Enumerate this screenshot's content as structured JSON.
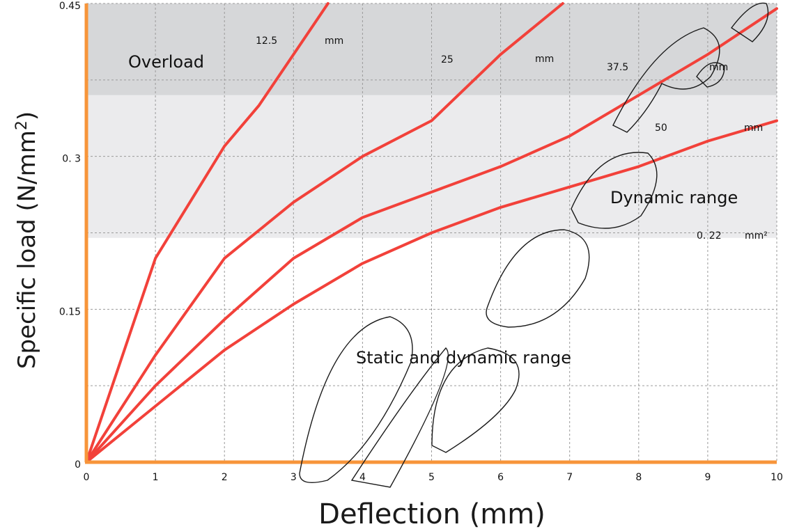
{
  "chart_data": {
    "type": "line",
    "xlabel": "Deflection (mm)",
    "ylabel_main": "Specific load (N/mm",
    "ylabel_sup": "2",
    "ylabel_close": ")",
    "xlim": [
      0,
      10
    ],
    "ylim": [
      0,
      0.45
    ],
    "x_ticks": [
      "0",
      "1",
      "2",
      "3",
      "4",
      "5",
      "6",
      "7",
      "8",
      "9",
      "10"
    ],
    "y_ticks": [
      {
        "value": 0,
        "label": "0"
      },
      {
        "value": 0.15,
        "label": "0.15"
      },
      {
        "value": 0.3,
        "label": "0. 3"
      },
      {
        "value": 0.45,
        "label": "0.45"
      }
    ],
    "grid": true,
    "regions": [
      {
        "label": "Overload",
        "y_from": 0.36,
        "y_to": 0.45,
        "color": "#d6d7d9"
      },
      {
        "label": "Dynamic range",
        "y_from": 0.22,
        "y_to": 0.36,
        "color": "#ebebed"
      },
      {
        "label": "Static and dynamic range",
        "y_from": 0,
        "y_to": 0.22,
        "color": "#ffffff"
      }
    ],
    "threshold_label": {
      "value": "0. 22",
      "unit": "mm²"
    },
    "series": [
      {
        "name": "12.5",
        "unit": "mm",
        "x": [
          0,
          1,
          2,
          2.5,
          3,
          3.5
        ],
        "y": [
          0,
          0.2,
          0.31,
          0.35,
          0.4,
          0.45
        ]
      },
      {
        "name": "25",
        "unit": "mm",
        "x": [
          0,
          1,
          2,
          3,
          4,
          5,
          6,
          6.9
        ],
        "y": [
          0,
          0.105,
          0.2,
          0.255,
          0.3,
          0.335,
          0.4,
          0.45
        ]
      },
      {
        "name": "37.5",
        "unit": "mm",
        "x": [
          0,
          1,
          2,
          3,
          4,
          5,
          6,
          7,
          8,
          9,
          10
        ],
        "y": [
          0,
          0.075,
          0.14,
          0.2,
          0.24,
          0.265,
          0.29,
          0.32,
          0.36,
          0.4,
          0.445
        ]
      },
      {
        "name": "50",
        "unit": "mm",
        "x": [
          0,
          1,
          2,
          3,
          4,
          5,
          6,
          7,
          8,
          9,
          10
        ],
        "y": [
          0,
          0.055,
          0.11,
          0.155,
          0.195,
          0.225,
          0.25,
          0.27,
          0.29,
          0.315,
          0.335
        ]
      }
    ],
    "colors": {
      "series": "#f2413a",
      "axis": "#f7953a"
    }
  }
}
